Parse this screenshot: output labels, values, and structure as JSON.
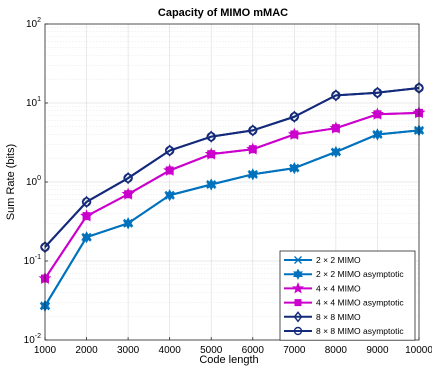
{
  "chart_data": {
    "type": "line",
    "title": "Capacity of MIMO mMAC",
    "xlabel": "Code length",
    "ylabel": "Sum Rate (bits)",
    "x": [
      1000,
      2000,
      3000,
      4000,
      5000,
      6000,
      7000,
      8000,
      9000,
      10000
    ],
    "x_tick_labels": [
      "1000",
      "2000",
      "3000",
      "4000",
      "5000",
      "6000",
      "7000",
      "8000",
      "9000",
      "10000"
    ],
    "xlim": [
      1000,
      10000
    ],
    "ylim": [
      0.01,
      100
    ],
    "y_scale": "log",
    "y_ticks": [
      {
        "value": 0.01,
        "base": "10",
        "exp": "-2"
      },
      {
        "value": 0.1,
        "base": "10",
        "exp": "-1"
      },
      {
        "value": 1,
        "base": "10",
        "exp": "0"
      },
      {
        "value": 10,
        "base": "10",
        "exp": "1"
      },
      {
        "value": 100,
        "base": "10",
        "exp": "2"
      }
    ],
    "grid": true,
    "legend_position": "bottom-right",
    "series": [
      {
        "name": "2 × 2 MIMO",
        "color": "#0072BD",
        "marker": "x",
        "values": [
          0.027,
          0.2,
          0.3,
          0.68,
          0.93,
          1.25,
          1.5,
          2.4,
          4.0,
          4.5
        ]
      },
      {
        "name": "2 × 2 MIMO asymptotic",
        "color": "#0072BD",
        "marker": "hexagram",
        "values": [
          0.027,
          0.2,
          0.3,
          0.68,
          0.93,
          1.25,
          1.5,
          2.4,
          4.0,
          4.5
        ]
      },
      {
        "name": "4 × 4 MIMO",
        "color": "#CC00CC",
        "marker": "pentagram",
        "values": [
          0.06,
          0.37,
          0.7,
          1.4,
          2.25,
          2.6,
          4.0,
          4.8,
          7.2,
          7.5
        ]
      },
      {
        "name": "4 × 4 MIMO asymptotic",
        "color": "#CC00CC",
        "marker": "square",
        "values": [
          0.06,
          0.37,
          0.7,
          1.4,
          2.25,
          2.6,
          4.0,
          4.8,
          7.2,
          7.5
        ]
      },
      {
        "name": "8 × 8 MIMO",
        "color": "#142A7A",
        "marker": "diamond",
        "values": [
          0.15,
          0.56,
          1.12,
          2.5,
          3.75,
          4.5,
          6.7,
          12.5,
          13.5,
          15.5
        ]
      },
      {
        "name": "8 × 8 MIMO asymptotic",
        "color": "#142A7A",
        "marker": "circle",
        "values": [
          0.15,
          0.56,
          1.12,
          2.5,
          3.75,
          4.5,
          6.7,
          12.5,
          13.5,
          15.5
        ]
      }
    ]
  }
}
